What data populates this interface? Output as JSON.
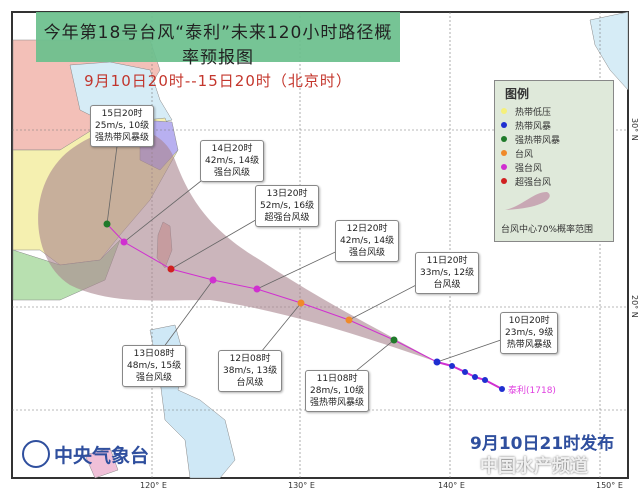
{
  "title": "今年第18号台风“泰利”未来120小时路径概率预报图",
  "subtitle": "9月10日20时--15日20时（北京时）",
  "legend": {
    "title": "图例",
    "items": [
      {
        "label": "热带低压",
        "color": "#f5f07a"
      },
      {
        "label": "热带风暴",
        "color": "#1f2fd0"
      },
      {
        "label": "强热带风暴",
        "color": "#1f7a2a"
      },
      {
        "label": "台风",
        "color": "#f08a2a"
      },
      {
        "label": "强台风",
        "color": "#d030d0"
      },
      {
        "label": "超强台风",
        "color": "#d02020"
      }
    ],
    "cone_label": "台风中心70%概率范围",
    "cone_color": "#b49ca6"
  },
  "axes": {
    "lon": [
      "120° E",
      "130° E",
      "140° E",
      "150° E"
    ],
    "lat": [
      "30° N",
      "20° N"
    ]
  },
  "forecasts": [
    {
      "time": "10日20时",
      "wind": "23m/s, 9级",
      "grade": "热带风暴级",
      "level": 1
    },
    {
      "time": "11日08时",
      "wind": "28m/s, 10级",
      "grade": "强热带风暴级",
      "level": 2
    },
    {
      "time": "11日20时",
      "wind": "33m/s, 12级",
      "grade": "台风级",
      "level": 3
    },
    {
      "time": "12日08时",
      "wind": "38m/s, 13级",
      "grade": "台风级",
      "level": 3
    },
    {
      "time": "12日20时",
      "wind": "42m/s, 14级",
      "grade": "强台风级",
      "level": 4
    },
    {
      "time": "13日08时",
      "wind": "48m/s, 15级",
      "grade": "强台风级",
      "level": 4
    },
    {
      "time": "13日20时",
      "wind": "52m/s, 16级",
      "grade": "超强台风级",
      "level": 5
    },
    {
      "time": "14日20时",
      "wind": "42m/s, 14级",
      "grade": "强台风级",
      "level": 4
    },
    {
      "time": "15日20时",
      "wind": "25m/s, 10级",
      "grade": "强热带风暴级",
      "level": 2
    }
  ],
  "typhoon_name": "泰利(1718)",
  "agency": "中央气象台",
  "issued": "9月10日21时发布",
  "watermark": "中国水产频道"
}
